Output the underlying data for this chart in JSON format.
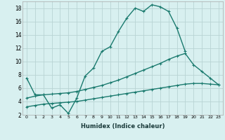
{
  "xlabel": "Humidex (Indice chaleur)",
  "series": [
    {
      "x": [
        0,
        1,
        2,
        3,
        4,
        5,
        6,
        7,
        8,
        9,
        10,
        11,
        12,
        13,
        14,
        15,
        16,
        17,
        18,
        19
      ],
      "y": [
        7.5,
        5.0,
        5.0,
        3.0,
        3.5,
        2.2,
        4.5,
        7.8,
        9.0,
        11.5,
        12.2,
        14.5,
        16.5,
        18.0,
        17.5,
        18.5,
        18.2,
        17.5,
        15.0,
        11.5
      ]
    },
    {
      "x": [
        0,
        1,
        2,
        3,
        4,
        5,
        6,
        7,
        8,
        9,
        10,
        11,
        12,
        13,
        14,
        15,
        16,
        17,
        18,
        19,
        20,
        21,
        22,
        23
      ],
      "y": [
        4.5,
        4.8,
        5.0,
        5.1,
        5.2,
        5.3,
        5.5,
        5.8,
        6.1,
        6.4,
        6.8,
        7.2,
        7.7,
        8.2,
        8.7,
        9.2,
        9.7,
        10.3,
        10.8,
        11.2,
        9.5,
        8.5,
        7.5,
        6.5
      ]
    },
    {
      "x": [
        0,
        1,
        2,
        3,
        4,
        5,
        6,
        7,
        8,
        9,
        10,
        11,
        12,
        13,
        14,
        15,
        16,
        17,
        18,
        19,
        20,
        21,
        22,
        23
      ],
      "y": [
        3.2,
        3.4,
        3.6,
        3.7,
        3.8,
        3.9,
        4.0,
        4.2,
        4.4,
        4.6,
        4.8,
        5.0,
        5.2,
        5.4,
        5.6,
        5.8,
        6.0,
        6.2,
        6.4,
        6.6,
        6.7,
        6.7,
        6.6,
        6.5
      ]
    }
  ],
  "color": "#1a7a6e",
  "bg_color": "#d8f0f0",
  "grid_color": "#b8d4d4",
  "ylim": [
    2,
    19
  ],
  "xlim": [
    -0.5,
    23.5
  ],
  "yticks": [
    2,
    4,
    6,
    8,
    10,
    12,
    14,
    16,
    18
  ],
  "xticks": [
    0,
    1,
    2,
    3,
    4,
    5,
    6,
    7,
    8,
    9,
    10,
    11,
    12,
    13,
    14,
    15,
    16,
    17,
    18,
    19,
    20,
    21,
    22,
    23
  ],
  "linewidth": 1.0,
  "markersize": 3.5
}
